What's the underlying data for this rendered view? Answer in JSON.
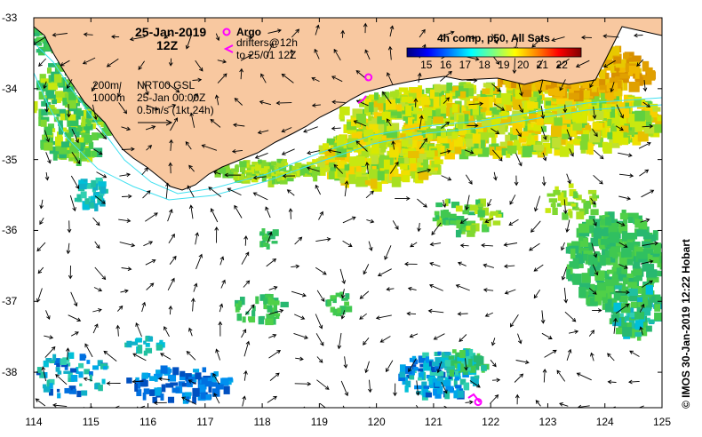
{
  "header": {
    "date": "25-Jan-2019",
    "time": "12Z",
    "argo_label": "Argo",
    "drifters_line1": "drifters@12h",
    "drifters_line2": "to 25/01 12Z"
  },
  "legend": {
    "composite_title": "4h comp, p50, All Sats",
    "colorbar_ticks": [
      15,
      16,
      17,
      18,
      19,
      20,
      21,
      22
    ],
    "colorbar_min": 14,
    "colorbar_max": 23,
    "colorbar_colors": [
      "#00007f",
      "#0000ff",
      "#007fff",
      "#00ffff",
      "#7fff7f",
      "#ffff00",
      "#ff7f00",
      "#ff0000",
      "#7f0000"
    ]
  },
  "map_info": {
    "depth_200": "200m",
    "depth_1000": "1000m",
    "product": "NRT00 GSL",
    "product_time": "25-Jan 00:00Z",
    "scale_label": "0.5m/s (1kt 24h)"
  },
  "credit": "©  IMOS 30-Jan-2019 12:22 Hobart",
  "axes": {
    "x_ticks": [
      114,
      115,
      116,
      117,
      118,
      119,
      120,
      121,
      122,
      123,
      124,
      125
    ],
    "y_ticks": [
      -33,
      -34,
      -35,
      -36,
      -37,
      -38
    ],
    "xlim": [
      114,
      125
    ],
    "ylim": [
      -38.5,
      -33
    ]
  },
  "colors": {
    "land": "#f8c8a0",
    "coast": "#000000",
    "isobath": "#40e0f0",
    "argo": "#ff00ff",
    "drifter": "#ff00ff",
    "arrow": "#000000"
  },
  "argo_floats": [
    {
      "lon": 119.86,
      "lat": -33.84
    },
    {
      "lon": 121.78,
      "lat": -38.42
    }
  ]
}
